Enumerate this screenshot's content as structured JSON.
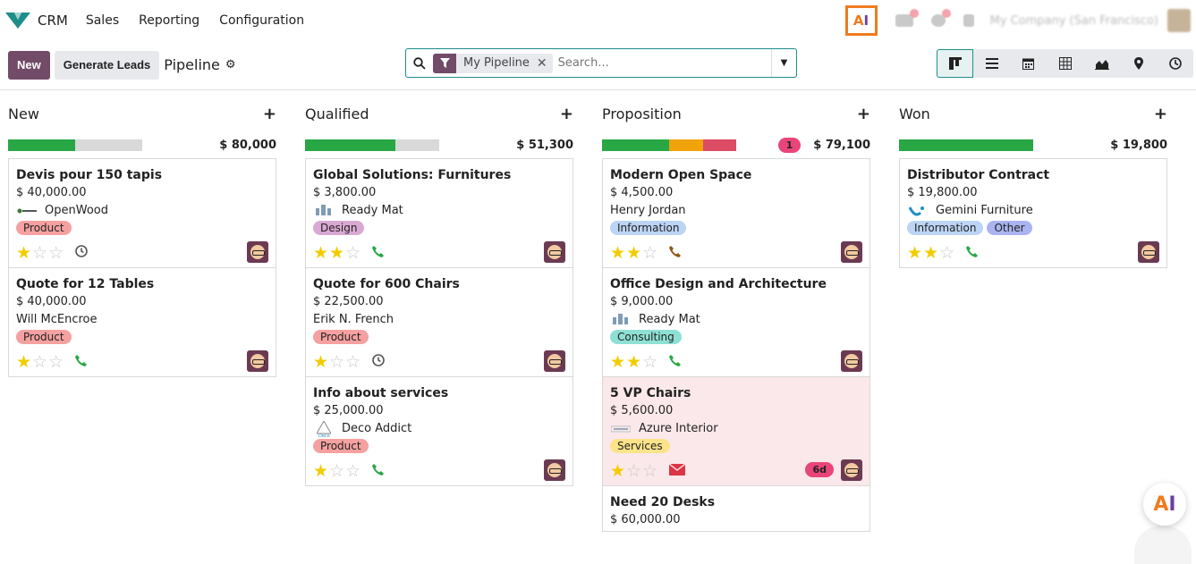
{
  "nav": {
    "app_name": "CRM",
    "menu": [
      "Sales",
      "Reporting",
      "Configuration"
    ],
    "ai_button": {
      "a": "A",
      "i": "I"
    },
    "company": "My Company (San Francisco)"
  },
  "control": {
    "new_label": "New",
    "generate_label": "Generate Leads",
    "title": "Pipeline",
    "facet_label": "My Pipeline",
    "search_placeholder": "Search...",
    "views": [
      "kanban-icon",
      "list-icon",
      "calendar-icon",
      "pivot-icon",
      "graph-icon",
      "map-icon",
      "activity-icon"
    ]
  },
  "columns": [
    {
      "name": "New",
      "total": "$ 80,000",
      "badge": "",
      "progress": [
        {
          "color": "#28a745",
          "pct": 50
        }
      ],
      "cards": [
        {
          "name": "Devis pour 150 tapis",
          "amount": "$ 40,000.00",
          "partner": "OpenWood",
          "logo": "openwood",
          "tags": [
            {
              "label": "Product",
              "color": "#f5a1a1"
            }
          ],
          "stars": 1,
          "activity": "clock",
          "late": "",
          "red": false
        },
        {
          "name": "Quote for 12 Tables",
          "amount": "$ 40,000.00",
          "partner": "Will McEncroe",
          "logo": "",
          "tags": [
            {
              "label": "Product",
              "color": "#f5a1a1"
            }
          ],
          "stars": 1,
          "activity": "phone",
          "late": "",
          "red": false
        }
      ]
    },
    {
      "name": "Qualified",
      "total": "$ 51,300",
      "badge": "",
      "progress": [
        {
          "color": "#28a745",
          "pct": 67
        }
      ],
      "cards": [
        {
          "name": "Global Solutions: Furnitures",
          "amount": "$ 3,800.00",
          "partner": "Ready Mat",
          "logo": "readymat",
          "tags": [
            {
              "label": "Design",
              "color": "#d9a8d3"
            }
          ],
          "stars": 2,
          "activity": "phone",
          "late": "",
          "red": false
        },
        {
          "name": "Quote for 600 Chairs",
          "amount": "$ 22,500.00",
          "partner": "Erik N. French",
          "logo": "",
          "tags": [
            {
              "label": "Product",
              "color": "#f5a1a1"
            }
          ],
          "stars": 1,
          "activity": "clock",
          "late": "",
          "red": false
        },
        {
          "name": "Info about services",
          "amount": "$ 25,000.00",
          "partner": "Deco Addict",
          "logo": "deco",
          "tags": [
            {
              "label": "Product",
              "color": "#f5a1a1"
            }
          ],
          "stars": 1,
          "activity": "phone",
          "late": "",
          "red": false
        }
      ]
    },
    {
      "name": "Proposition",
      "total": "$ 79,100",
      "badge": "1",
      "progress": [
        {
          "color": "#28a745",
          "pct": 50
        },
        {
          "color": "#f0a30a",
          "pct": 25
        },
        {
          "color": "#dc4c64",
          "pct": 25
        }
      ],
      "cards": [
        {
          "name": "Modern Open Space",
          "amount": "$ 4,500.00",
          "partner": "Henry Jordan",
          "logo": "",
          "tags": [
            {
              "label": "Information",
              "color": "#bcd4f5"
            }
          ],
          "stars": 2,
          "activity": "phone-warn",
          "late": "",
          "red": false
        },
        {
          "name": "Office Design and Architecture",
          "amount": "$ 9,000.00",
          "partner": "Ready Mat",
          "logo": "readymat",
          "tags": [
            {
              "label": "Consulting",
              "color": "#8fe0d4"
            }
          ],
          "stars": 2,
          "activity": "phone",
          "late": "",
          "red": false
        },
        {
          "name": "5 VP Chairs",
          "amount": "$ 5,600.00",
          "partner": "Azure Interior",
          "logo": "azure",
          "tags": [
            {
              "label": "Services",
              "color": "#fce38a"
            }
          ],
          "stars": 1,
          "activity": "mail",
          "late": "6d",
          "red": true
        },
        {
          "name": "Need 20 Desks",
          "amount": "$ 60,000.00",
          "partner": "",
          "logo": "",
          "tags": [],
          "stars": 0,
          "activity": "",
          "late": "",
          "red": false
        }
      ]
    },
    {
      "name": "Won",
      "total": "$ 19,800",
      "badge": "",
      "progress": [
        {
          "color": "#28a745",
          "pct": 100
        }
      ],
      "cards": [
        {
          "name": "Distributor Contract",
          "amount": "$ 19,800.00",
          "partner": "Gemini Furniture",
          "logo": "gemini",
          "tags": [
            {
              "label": "Information",
              "color": "#bcd4f5"
            },
            {
              "label": "Other",
              "color": "#a9b4f0"
            }
          ],
          "stars": 2,
          "activity": "phone",
          "late": "",
          "red": false
        }
      ]
    }
  ],
  "ai_float": {
    "a": "A",
    "i": "I"
  }
}
